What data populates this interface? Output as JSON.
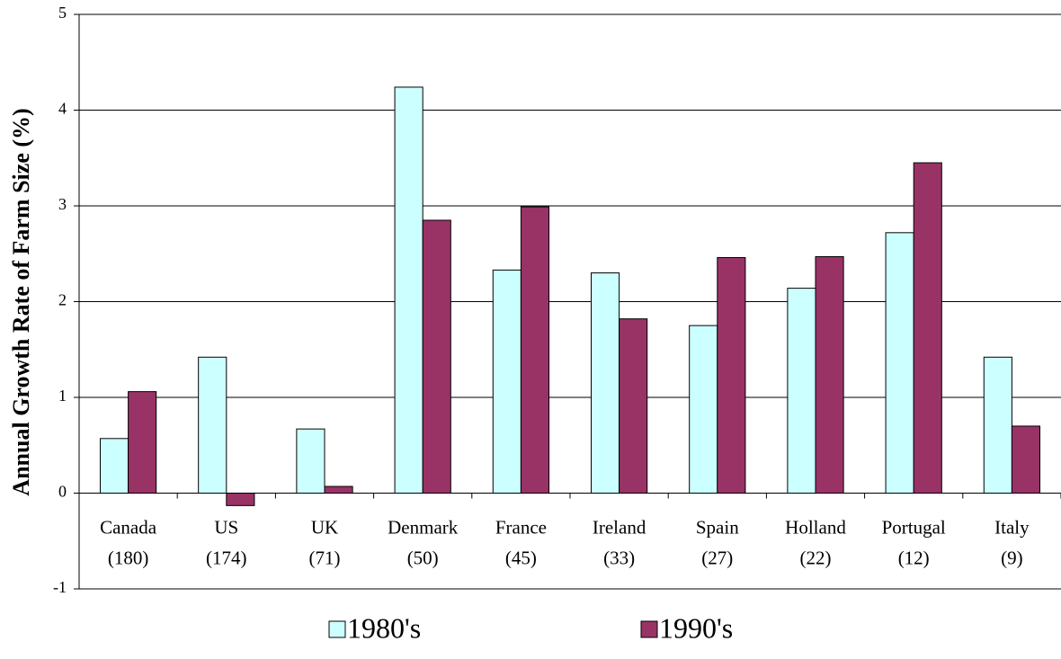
{
  "chart_data": {
    "type": "bar",
    "y_label": "Annual Growth Rate of Farm Size (%)",
    "categories": [
      [
        "Canada",
        "(180)"
      ],
      [
        "US",
        "(174)"
      ],
      [
        "UK",
        "(71)"
      ],
      [
        "Denmark",
        "(50)"
      ],
      [
        "France",
        "(45)"
      ],
      [
        "Ireland",
        "(33)"
      ],
      [
        "Spain",
        "(27)"
      ],
      [
        "Holland",
        "(22)"
      ],
      [
        "Portugal",
        "(12)"
      ],
      [
        "Italy",
        "(9)"
      ]
    ],
    "series": [
      {
        "name": "1980's",
        "color": "#ccffff",
        "values": [
          0.57,
          1.42,
          0.67,
          4.24,
          2.33,
          2.3,
          1.75,
          2.14,
          2.72,
          1.42
        ]
      },
      {
        "name": "1990's",
        "color": "#993366",
        "values": [
          1.06,
          -0.13,
          0.07,
          2.85,
          2.99,
          1.82,
          2.46,
          2.47,
          3.45,
          0.7
        ]
      }
    ],
    "ylim": [
      -1,
      5
    ],
    "yticks": [
      -1,
      0,
      1,
      2,
      3,
      4,
      5
    ],
    "grid": true,
    "legend": "bottom"
  }
}
